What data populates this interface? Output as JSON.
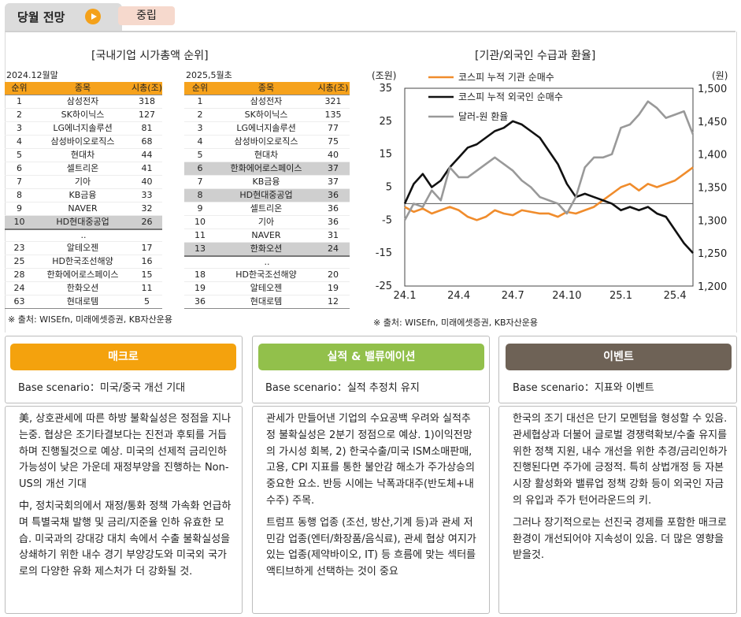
{
  "header": {
    "title": "당월 전망",
    "badge": "중립"
  },
  "left": {
    "title": "[국내기업 시가총액 순위]",
    "table1": {
      "date": "2024.12월말",
      "headers": [
        "순위",
        "종목",
        "시총(조)"
      ],
      "rows": [
        [
          "1",
          "삼성전자",
          "318"
        ],
        [
          "2",
          "SK하이닉스",
          "127"
        ],
        [
          "3",
          "LG에너지솔루션",
          "81"
        ],
        [
          "4",
          "삼성바이오로직스",
          "68"
        ],
        [
          "5",
          "현대차",
          "44"
        ],
        [
          "6",
          "셀트리온",
          "41"
        ],
        [
          "7",
          "기아",
          "40"
        ],
        [
          "8",
          "KB금융",
          "33"
        ],
        [
          "9",
          "NAVER",
          "32"
        ],
        [
          "10",
          "HD현대중공업",
          "26"
        ]
      ],
      "dots": "..",
      "rows2": [
        [
          "23",
          "알테오젠",
          "17"
        ],
        [
          "25",
          "HD한국조선해양",
          "16"
        ],
        [
          "28",
          "한화에어로스페이스",
          "15"
        ],
        [
          "24",
          "한화오션",
          "11"
        ],
        [
          "63",
          "현대로템",
          "5"
        ]
      ]
    },
    "table2": {
      "date": "2025,5월초",
      "headers": [
        "순위",
        "종목",
        "시총(조)"
      ],
      "rows": [
        [
          "1",
          "삼성전자",
          "321"
        ],
        [
          "2",
          "SK하이닉스",
          "135"
        ],
        [
          "3",
          "LG에너지솔루션",
          "77"
        ],
        [
          "4",
          "삼성바이오로직스",
          "75"
        ],
        [
          "5",
          "현대차",
          "40"
        ],
        [
          "6",
          "한화에어로스페이스",
          "37"
        ],
        [
          "7",
          "KB금융",
          "37"
        ],
        [
          "8",
          "HD현대중공업",
          "36"
        ],
        [
          "9",
          "셀트리온",
          "36"
        ],
        [
          "10",
          "기아",
          "36"
        ],
        [
          "11",
          "NAVER",
          "31"
        ],
        [
          "13",
          "한화오션",
          "24"
        ]
      ],
      "dots": "..",
      "rows2": [
        [
          "18",
          "HD한국조선해양",
          "20"
        ],
        [
          "19",
          "알테오젠",
          "19"
        ],
        [
          "36",
          "현대로템",
          "12"
        ]
      ]
    },
    "source": "※ 출처: WISEfn, 미래에셋증권, KB자산운용"
  },
  "right": {
    "title": "[기관/외국인 수급과 환율]",
    "source": "※ 출처: WISEfn, 미래에셋증권, KB자산운용"
  },
  "chart_data": {
    "type": "line",
    "title": "[기관/외국인 수급과 환율]",
    "ylabel_left": "(조원)",
    "ylabel_right": "(원)",
    "ylim_left": [
      -25,
      35
    ],
    "ylim_right": [
      1200,
      1500
    ],
    "yticks_left": [
      "35",
      "25",
      "15",
      "5",
      "-5",
      "-15",
      "-25"
    ],
    "yticks_right": [
      "1,500",
      "1,450",
      "1,400",
      "1,350",
      "1,300",
      "1,250",
      "1,200"
    ],
    "xtick_labels": [
      "24.1",
      "24.4",
      "24.7",
      "24.10",
      "25.1",
      "25.4"
    ],
    "x": [
      0,
      0.5,
      1,
      1.5,
      2,
      2.5,
      3,
      3.5,
      4,
      4.5,
      5,
      5.5,
      6,
      6.5,
      7,
      7.5,
      8,
      8.5,
      9,
      9.5,
      10,
      10.5,
      11,
      11.5,
      12,
      12.5,
      13,
      13.5,
      14,
      14.5,
      15,
      15.5,
      16
    ],
    "series": [
      {
        "name": "코스피 누적 기관 순매수",
        "color": "#f08c2c",
        "axis": "left",
        "values": [
          -1,
          -2.5,
          -1.5,
          -3,
          -2,
          -1,
          -2,
          -4,
          -5,
          -4,
          -2,
          -3,
          -3.5,
          -2,
          -2.5,
          -3,
          -3,
          -4,
          -2.5,
          -3,
          -2,
          -1,
          1,
          3,
          5,
          6,
          4,
          6,
          5,
          6,
          7,
          9,
          11
        ]
      },
      {
        "name": "코스피 누적 외국인 순매수",
        "color": "#111111",
        "axis": "left",
        "values": [
          0,
          6,
          9,
          5,
          7,
          11,
          14,
          17,
          18,
          20,
          22,
          23,
          25,
          24,
          22,
          20,
          16,
          12,
          6,
          2,
          3,
          2,
          1,
          0,
          -2,
          -1,
          -2,
          -1,
          -3,
          -4,
          -8,
          -12,
          -15
        ]
      },
      {
        "name": "달러-원 환율",
        "color": "#999999",
        "axis": "right",
        "values": [
          1300,
          1325,
          1320,
          1345,
          1330,
          1380,
          1365,
          1365,
          1375,
          1385,
          1395,
          1385,
          1375,
          1360,
          1350,
          1335,
          1330,
          1325,
          1310,
          1335,
          1380,
          1395,
          1395,
          1400,
          1440,
          1445,
          1460,
          1480,
          1470,
          1455,
          1460,
          1465,
          1430
        ]
      }
    ]
  },
  "bottom": {
    "macro": {
      "title": "매크로",
      "color": "#f4a20d",
      "scenario": "Base scenario：미국/중국 개선 기대",
      "paras": [
        "美, 상호관세에 따른 하방 불확실성은 정점을 지나는중. 협상은 조기타결보다는 진전과 후퇴를 거듭하며 진행될것으로 예상. 미국의 선제적 금리인하 가능성이 낮은 가운데 재정부양을 진행하는 Non-US의 개선 기대",
        "中, 정치국회의에서 재정/통화 정책 가속화 언급하며 특별국채 발행 및 금리/지준율 인하 유효한 모습. 미국과의 강대강 대치 속에서 수출 불확실성을 상쇄하기 위한 내수 경기 부양강도와 미국외 국가로의 다양한 유화 제스처가 더 강화될 것."
      ]
    },
    "earnings": {
      "title": "실적 & 밸류에이션",
      "color": "#92c04b",
      "scenario": "Base scenario：실적 추정치 유지",
      "paras": [
        "관세가 만들어낸 기업의 수요공백 우려와 실적추정 불확실성은 2분기 정점으로 예상. 1)이익전망의 가시성 회복, 2) 한국수출/미국 ISM소매판매, 고용, CPI 지표를 통한 불안감 해소가 주가상승의 중요한 요소. 반등 시에는 낙폭과대주(반도체+내수주) 주목.",
        "트럼프 동행 업종 (조선, 방산,기계 등)과 관세 저민감 업종(엔터/화장품/음식료), 관세 협상 여지가 있는 업종(제약바이오, IT) 등 흐름에 맞는 섹터를 액티브하게 선택하는 것이 중요"
      ]
    },
    "event": {
      "title": "이벤트",
      "color": "#6e6256",
      "scenario": "Base scenario：지표와 이벤트",
      "paras": [
        "한국의 조기 대선은 단기 모멘텀을 형성할 수 있음. 관세협상과 더불어 글로벌 경쟁력확보/수출 유지를 위한 정책 지원, 내수 개선을 위한 추경/금리인하가 진행된다면 주가에 긍정적. 특히 상법개정 등 자본시장 활성화와 밸류업 정책 강화 등이 외국인 자금의 유입과 주가 턴어라운드의 키.",
        "그러나 장기적으로는 선진국 경제를 포함한 매크로 환경이 개선되어야 지속성이 있음. 더 많은 영향을 받을것."
      ]
    }
  }
}
